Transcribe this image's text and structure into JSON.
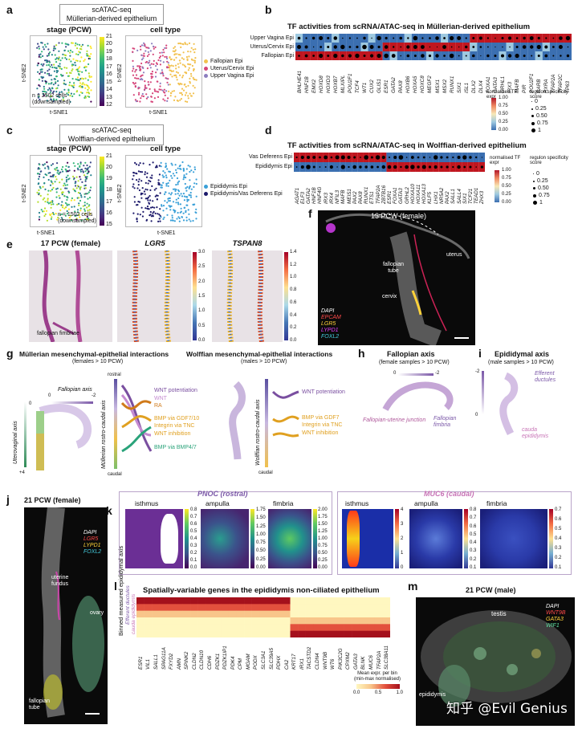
{
  "panel_labels": {
    "a": "a",
    "b": "b",
    "c": "c",
    "d": "d",
    "e": "e",
    "f": "f",
    "g": "g",
    "h": "h",
    "i": "i",
    "j": "j",
    "k": "k",
    "l": "l",
    "m": "m"
  },
  "panel_a": {
    "title_line1": "scATAC-seq",
    "title_line2": "Müllerian-derived epithelium",
    "stage_title": "stage (PCW)",
    "celltype_title": "cell type",
    "xlabel": "t-SNE1",
    "ylabel": "t-SNE2",
    "note_line1": "n = 2502 cells",
    "note_line2": "(downsampled)",
    "colorbar_ticks": [
      "21",
      "20",
      "19",
      "18",
      "17",
      "16",
      "15",
      "14",
      "13",
      "12"
    ],
    "legend": [
      {
        "label": "Fallopian Epi",
        "color": "#f2c14e"
      },
      {
        "label": "Uterus/Cervix Epi",
        "color": "#d6457a"
      },
      {
        "label": "Upper Vagina Epi",
        "color": "#8c7fbf"
      }
    ]
  },
  "panel_b": {
    "title": "TF activities from scRNA/ATAC-seq in Müllerian-derived epithelium",
    "rows": [
      "Upper Vagina Epi",
      "Uterus/Cervix Epi",
      "Fallopian Epi"
    ],
    "genes": [
      "BHLHE41",
      "HNF1B",
      "EMX2",
      "HOXD8",
      "HOXD3",
      "HOXB7",
      "MLXIPL",
      "POU2F1",
      "TCF4",
      "WT1",
      "CUX2",
      "GLIS1",
      "ESR1",
      "GATA2",
      "PAX8",
      "HOXB6",
      "HOXA5",
      "HOXC8",
      "MEGF2",
      "MSX1",
      "MSX2",
      "RUNX1",
      "SIX1",
      "ISL1",
      "DLX2",
      "DLX4",
      "FOXA1",
      "GATA3",
      "GRHL1",
      "IRX3",
      "MAFB",
      "PIR",
      "POU2F1",
      "RARB",
      "RXRA",
      "TFAP2A",
      "TFAP2C",
      "TP63"
    ],
    "legend_expr_title": "normalised TF expr",
    "legend_expr_ticks": [
      "1.00",
      "0.75",
      "0.50",
      "0.25",
      "0.00"
    ],
    "legend_spec_title": "regulon specificity score",
    "legend_spec_ticks": [
      "0",
      "0.25",
      "0.50",
      "0.75",
      "1"
    ]
  },
  "panel_c": {
    "title_line1": "scATAC-seq",
    "title_line2": "Wolffian-derived epithelium",
    "stage_title": "stage (PCW)",
    "celltype_title": "cell type",
    "xlabel": "t-SNE1",
    "ylabel": "t-SNE2",
    "note_line1": "n = 1502 cells",
    "note_line2": "(downsampled)",
    "colorbar_ticks": [
      "21",
      "20",
      "19",
      "18",
      "17",
      "16",
      "15"
    ],
    "legend": [
      {
        "label": "Epididymis Epi",
        "color": "#3aa0d8"
      },
      {
        "label": "Epididymis/Vas Deferens Epi",
        "color": "#1d1a6b"
      }
    ]
  },
  "panel_d": {
    "title": "TF activities from scRNA/ATAC-seq in Wolffian-derived epithelium",
    "rows": [
      "Vas Deferens Epi",
      "Epididymis Epi"
    ],
    "genes": [
      "AGAT1",
      "ELF3",
      "GATA2",
      "HNF1B",
      "HNF4G",
      "IRX3",
      "IRX4",
      "NFIL3",
      "MAFB",
      "MEIS1",
      "PAX2",
      "PAX8",
      "RUNX1",
      "ETS1",
      "TFAP2A",
      "ZBTB16",
      "ESR1",
      "FOXA1",
      "GATA3",
      "GRHL2",
      "HOXA10",
      "HOXA11",
      "HOXA13",
      "KLF5",
      "LHX1",
      "NR5A2",
      "PAX2",
      "SALL1",
      "SALL4",
      "SIX1",
      "TCF21",
      "TEAD1",
      "ZHX3"
    ],
    "legend_expr_title": "normalised TF expr",
    "legend_expr_ticks": [
      "1.00",
      "0.75",
      "0.50",
      "0.25",
      "0.00"
    ],
    "legend_spec_title": "regulon specificity score",
    "legend_spec_ticks": [
      "0",
      "0.25",
      "0.50",
      "0.75",
      "1"
    ]
  },
  "panel_e": {
    "titles": [
      "17 PCW (female)",
      "LGR5",
      "TSPAN8"
    ],
    "annotation": "fallopian fimbriae",
    "cbar1_ticks": [
      "3.0",
      "2.5",
      "2.0",
      "1.5",
      "1.0",
      "0.5",
      "0.0"
    ],
    "cbar2_ticks": [
      "1.4",
      "1.2",
      "1.0",
      "0.8",
      "0.6",
      "0.4",
      "0.2",
      "0.0"
    ]
  },
  "panel_f": {
    "title": "13 PCW (female)",
    "labels": [
      "fallopian tube",
      "uterus",
      "cervix"
    ],
    "legend": [
      {
        "label": "DAPI",
        "color": "#ffffff"
      },
      {
        "label": "EPCAM",
        "color": "#ff4a4a"
      },
      {
        "label": "LGR5",
        "color": "#ffd23a"
      },
      {
        "label": "LYPD1",
        "color": "#e040fb"
      },
      {
        "label": "FOXL2",
        "color": "#44ccdd"
      }
    ]
  },
  "panel_g": {
    "title_left_line1": "Müllerian mesenchymal-epithelial interactions",
    "title_left_line2": "(females > 10 PCW)",
    "title_right_line1": "Wolffian mesenchymal-epithelial interactions",
    "title_right_line2": "(males > 10 PCW)",
    "fallopian_axis": "Fallopian axis",
    "fallopian_ticks": [
      "0",
      "-2"
    ],
    "uterovaginal_axis": "Uterovaginal axis",
    "uterovaginal_ticks": [
      "0",
      "+4"
    ],
    "mullerian_axis": "Müllerian rostro-caudal axis",
    "rostral": "rostral",
    "caudal": "caudal",
    "left_terms": [
      {
        "text": "WNT potentiation",
        "color": "#7a4fa0"
      },
      {
        "text": "WNT",
        "color": "#c58bd1"
      },
      {
        "text": "RA",
        "color": "#d07a1a"
      },
      {
        "text": "BMP via GDF7/10",
        "color": "#e0a020"
      },
      {
        "text": "Integrin via TNC",
        "color": "#e0a020"
      },
      {
        "text": "WNT inhibition",
        "color": "#e0a020"
      },
      {
        "text": "BMP via BMP4/7",
        "color": "#2aa37a"
      }
    ],
    "wolffian_axis": "Wolffian rostro-caudal axis",
    "right_terms": [
      {
        "text": "WNT potentiation",
        "color": "#7a4fa0"
      },
      {
        "text": "BMP via GDF7",
        "color": "#e0a020"
      },
      {
        "text": "Integrin via TNC",
        "color": "#e0a020"
      },
      {
        "text": "WNT inhibition",
        "color": "#e0a020"
      }
    ]
  },
  "panel_h": {
    "title": "Fallopian axis",
    "subtitle": "(female samples > 10 PCW)",
    "ticks": [
      "0",
      "-2"
    ],
    "label_left": "Fallopian-uterine junction",
    "label_right": "Fallopian fimbria"
  },
  "panel_i": {
    "title": "Epididymal axis",
    "subtitle": "(male samples > 10 PCW)",
    "ticks": [
      "-2",
      "0"
    ],
    "label_top": "Efferent ductules",
    "label_bottom": "cauda epididymis"
  },
  "panel_j": {
    "title": "21 PCW (female)",
    "labels": [
      "uterine fundus",
      "ovary",
      "fallopian tube"
    ],
    "legend": [
      {
        "label": "DAPI",
        "color": "#ffffff"
      },
      {
        "label": "LGR5",
        "color": "#ff4a4a"
      },
      {
        "label": "LYPD1",
        "color": "#ffd23a"
      },
      {
        "label": "FOXL2",
        "color": "#44ccdd"
      }
    ]
  },
  "panel_k": {
    "left_header": "PNOC (rostral)",
    "right_header": "MUC6 (caudal)",
    "subtitles": [
      "isthmus",
      "ampulla",
      "fimbria",
      "isthmus",
      "ampulla",
      "fimbria"
    ],
    "cbar_ticks": [
      [
        "0.8",
        "0.7",
        "0.6",
        "0.5",
        "0.4",
        "0.3",
        "0.2",
        "0.1",
        "0.0"
      ],
      [
        "1.75",
        "1.50",
        "1.25",
        "1.00",
        "0.75",
        "0.50",
        "0.25",
        "0.00"
      ],
      [
        "2.00",
        "1.75",
        "1.50",
        "1.25",
        "1.00",
        "0.75",
        "0.50",
        "0.25",
        "0.00"
      ],
      [
        "4",
        "3",
        "2",
        "1",
        "0"
      ],
      [
        "0.8",
        "0.7",
        "0.6",
        "0.5",
        "0.4",
        "0.3",
        "0.2",
        "0.1"
      ],
      [
        "0.7",
        "0.6",
        "0.5",
        "0.4",
        "0.3",
        "0.2",
        "0.1"
      ]
    ]
  },
  "panel_l": {
    "title": "Spatially-variable genes in the epididymis non-ciliated epithelium",
    "ylabel": "Binned measured epididymal axis",
    "axis_top": "Efferent ductules",
    "axis_bottom": "cauda epididymis",
    "genes": [
      "ESR1",
      "VIL1",
      "SALL1",
      "SPAG11A",
      "FXYD2",
      "AMN",
      "SPINK2",
      "CLDN2",
      "CLDN10",
      "CDH6",
      "PDZK1",
      "PDZK1IP1",
      "PDK4",
      "CPM",
      "MGAM",
      "PODX",
      "SLC3A1",
      "SLC39A5",
      "PDHX",
      "CA2",
      "KRT17",
      "IRX1",
      "TACSTD2",
      "CLDN4",
      "WNT9B",
      "WT6",
      "PIK3C2G",
      "CPXM2",
      "GATA3",
      "BLNK",
      "MUC6",
      "TFAP2A",
      "SLC38A11"
    ],
    "legend_title_line1": "Mean expr. per bin",
    "legend_title_line2": "(min-max normalised)",
    "legend_ticks": [
      "0.0",
      "0.5",
      "1.0"
    ]
  },
  "panel_m": {
    "title": "21 PCW (male)",
    "labels": [
      "testis",
      "epididymis"
    ],
    "legend": [
      {
        "label": "DAPI",
        "color": "#ffffff"
      },
      {
        "label": "WNT9B",
        "color": "#ff4a4a"
      },
      {
        "label": "GATA3",
        "color": "#ffd23a"
      },
      {
        "label": "WIF1",
        "color": "#5fe0a0"
      }
    ],
    "watermark": "知乎 @Evil Genius"
  },
  "colors": {
    "heat_red": "#c0161f",
    "heat_blue": "#3b6fb1",
    "heat_light": "#f4e3c3",
    "purple_accent": "#7b58a8",
    "pink_accent": "#c874b6"
  }
}
